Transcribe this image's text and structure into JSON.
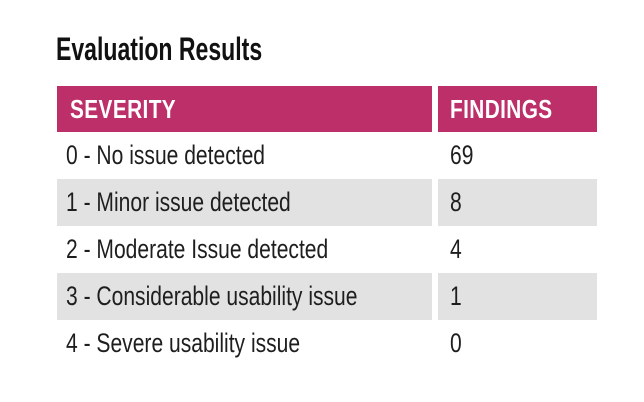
{
  "title": "Evaluation Results",
  "table": {
    "header": {
      "severity": "SEVERITY",
      "findings": "FINDINGS"
    },
    "rows": [
      {
        "severity": "0 - No issue detected",
        "findings": "69"
      },
      {
        "severity": "1 - Minor issue detected",
        "findings": "8"
      },
      {
        "severity": "2 - Moderate Issue detected",
        "findings": "4"
      },
      {
        "severity": "3 - Considerable usability issue",
        "findings": "1"
      },
      {
        "severity": "4 - Severe usability issue",
        "findings": "0"
      }
    ],
    "colors": {
      "header_bg": "#BC2F69",
      "header_text": "#FFFFFF",
      "row_alt_bg": "#E2E2E2",
      "row_bg": "#FFFFFF",
      "body_text": "#1E1E1E"
    }
  },
  "chart_data": {
    "type": "table",
    "title": "Evaluation Results",
    "columns": [
      "SEVERITY",
      "FINDINGS"
    ],
    "categories": [
      "0 - No issue detected",
      "1 - Minor issue detected",
      "2 - Moderate Issue detected",
      "3 - Considerable usability issue",
      "4 - Severe usability issue"
    ],
    "values": [
      69,
      8,
      4,
      1,
      0
    ]
  }
}
